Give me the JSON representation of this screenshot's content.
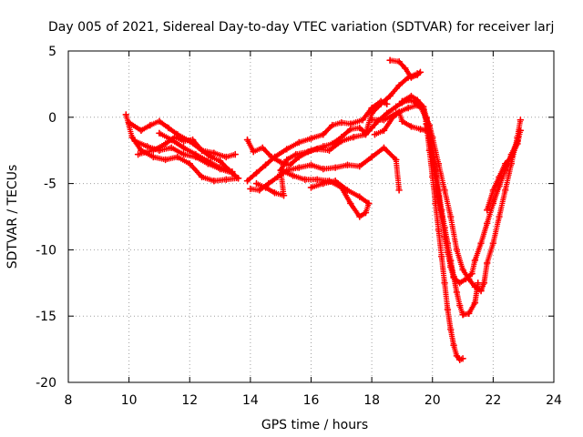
{
  "chart_data": {
    "type": "scatter",
    "title": "Day 005 of 2021, Sidereal Day-to-day VTEC variation (SDTVAR) for receiver larj",
    "xlabel": "GPS time / hours",
    "ylabel": "SDTVAR / TECUs",
    "xlim": [
      8,
      24
    ],
    "ylim": [
      -20,
      5
    ],
    "xticks": [
      8,
      10,
      12,
      14,
      16,
      18,
      20,
      22,
      24
    ],
    "yticks": [
      -20,
      -15,
      -10,
      -5,
      0,
      5
    ],
    "xtick_labels": [
      "8",
      "10",
      "12",
      "14",
      "16",
      "18",
      "20",
      "22",
      "24"
    ],
    "ytick_labels": [
      "-20",
      "-15",
      "-10",
      "-5",
      "0",
      "5"
    ],
    "grid": true,
    "marker": "plus",
    "color": "#ff0000",
    "series": [
      {
        "points": [
          [
            9.9,
            0.2
          ],
          [
            10.1,
            -1.5
          ],
          [
            10.4,
            -2.5
          ],
          [
            10.8,
            -3.0
          ],
          [
            11.2,
            -3.2
          ],
          [
            11.6,
            -3.0
          ],
          [
            12.0,
            -3.5
          ],
          [
            12.4,
            -4.5
          ],
          [
            12.8,
            -4.8
          ],
          [
            13.2,
            -4.7
          ],
          [
            13.6,
            -4.6
          ]
        ]
      },
      {
        "points": [
          [
            10.0,
            -0.4
          ],
          [
            10.4,
            -1.0
          ],
          [
            10.7,
            -0.6
          ],
          [
            11.0,
            -0.3
          ],
          [
            11.3,
            -0.8
          ],
          [
            11.6,
            -1.3
          ],
          [
            12.0,
            -1.8
          ],
          [
            12.4,
            -2.5
          ],
          [
            12.7,
            -3.0
          ],
          [
            13.0,
            -3.3
          ],
          [
            13.3,
            -4.0
          ],
          [
            13.6,
            -4.6
          ]
        ]
      },
      {
        "points": [
          [
            10.2,
            -1.8
          ],
          [
            10.6,
            -2.2
          ],
          [
            11.0,
            -2.5
          ],
          [
            11.4,
            -2.3
          ],
          [
            11.8,
            -2.8
          ],
          [
            12.2,
            -3.0
          ],
          [
            12.6,
            -3.5
          ],
          [
            13.0,
            -3.9
          ],
          [
            13.4,
            -4.2
          ]
        ]
      },
      {
        "points": [
          [
            10.3,
            -2.8
          ],
          [
            10.8,
            -2.5
          ],
          [
            11.2,
            -2.0
          ],
          [
            11.5,
            -1.5
          ],
          [
            11.8,
            -1.8
          ],
          [
            12.1,
            -1.7
          ],
          [
            12.4,
            -2.5
          ],
          [
            12.8,
            -2.7
          ],
          [
            13.2,
            -3.0
          ],
          [
            13.5,
            -2.8
          ]
        ]
      },
      {
        "points": [
          [
            11.0,
            -1.2
          ],
          [
            11.4,
            -1.7
          ],
          [
            11.8,
            -2.3
          ],
          [
            12.2,
            -2.8
          ],
          [
            12.6,
            -3.3
          ],
          [
            13.0,
            -3.8
          ],
          [
            13.4,
            -4.1
          ]
        ]
      },
      {
        "points": [
          [
            13.9,
            -1.7
          ],
          [
            14.1,
            -2.6
          ],
          [
            14.4,
            -2.3
          ],
          [
            14.7,
            -3.0
          ],
          [
            15.0,
            -3.4
          ],
          [
            15.3,
            -3.6
          ],
          [
            15.6,
            -3.0
          ],
          [
            16.0,
            -2.5
          ],
          [
            16.4,
            -2.2
          ],
          [
            16.7,
            -2.0
          ],
          [
            17.0,
            -1.5
          ],
          [
            17.3,
            -0.9
          ],
          [
            17.6,
            -0.8
          ],
          [
            17.8,
            -1.2
          ],
          [
            18.0,
            0.3
          ],
          [
            18.3,
            1.0
          ],
          [
            18.6,
            1.6
          ],
          [
            18.9,
            2.4
          ],
          [
            19.2,
            3.0
          ],
          [
            19.5,
            3.3
          ]
        ]
      },
      {
        "points": [
          [
            13.9,
            -4.8
          ],
          [
            14.2,
            -4.2
          ],
          [
            14.5,
            -3.6
          ],
          [
            14.8,
            -3.0
          ],
          [
            15.2,
            -2.4
          ],
          [
            15.6,
            -1.9
          ],
          [
            16.0,
            -1.6
          ],
          [
            16.4,
            -1.3
          ],
          [
            16.7,
            -0.6
          ],
          [
            17.0,
            -0.4
          ],
          [
            17.3,
            -0.5
          ],
          [
            17.7,
            -0.2
          ],
          [
            18.0,
            0.7
          ],
          [
            18.3,
            1.2
          ],
          [
            18.5,
            1.0
          ]
        ]
      },
      {
        "points": [
          [
            14.0,
            -5.4
          ],
          [
            14.3,
            -5.5
          ],
          [
            14.6,
            -5.0
          ],
          [
            14.9,
            -4.5
          ],
          [
            15.2,
            -4.0
          ],
          [
            15.6,
            -3.8
          ],
          [
            16.0,
            -3.6
          ],
          [
            16.4,
            -3.9
          ],
          [
            16.8,
            -3.8
          ],
          [
            17.2,
            -3.6
          ],
          [
            17.6,
            -3.7
          ],
          [
            18.0,
            -3.0
          ],
          [
            18.4,
            -2.3
          ],
          [
            18.8,
            -3.2
          ],
          [
            18.9,
            -5.5
          ]
        ]
      },
      {
        "points": [
          [
            14.2,
            -5.0
          ],
          [
            14.5,
            -5.3
          ],
          [
            14.8,
            -5.7
          ],
          [
            15.1,
            -5.9
          ],
          [
            15.0,
            -4.0
          ],
          [
            15.2,
            -3.2
          ],
          [
            15.5,
            -2.8
          ],
          [
            15.9,
            -2.6
          ],
          [
            16.2,
            -2.4
          ],
          [
            16.6,
            -2.5
          ],
          [
            17.0,
            -1.8
          ],
          [
            17.4,
            -1.5
          ],
          [
            17.8,
            -1.3
          ],
          [
            18.0,
            -0.8
          ],
          [
            18.2,
            -0.3
          ],
          [
            18.5,
            0.3
          ],
          [
            18.8,
            0.8
          ],
          [
            19.0,
            1.1
          ],
          [
            19.2,
            1.3
          ],
          [
            19.4,
            1.2
          ],
          [
            19.6,
            0.8
          ],
          [
            19.8,
            -0.1
          ],
          [
            19.9,
            -0.6
          ],
          [
            20.0,
            -1.5
          ],
          [
            20.2,
            -3.5
          ],
          [
            20.4,
            -5.5
          ],
          [
            20.6,
            -7.5
          ],
          [
            20.8,
            -10.0
          ],
          [
            21.0,
            -11.5
          ],
          [
            21.2,
            -12.2
          ],
          [
            21.4,
            -12.8
          ],
          [
            21.6,
            -13.1
          ],
          [
            21.7,
            -12.5
          ],
          [
            21.8,
            -11.0
          ],
          [
            22.0,
            -9.5
          ],
          [
            22.2,
            -7.5
          ],
          [
            22.4,
            -5.5
          ],
          [
            22.6,
            -3.5
          ],
          [
            22.8,
            -1.5
          ],
          [
            22.9,
            -0.2
          ]
        ]
      },
      {
        "points": [
          [
            15.0,
            -4.0
          ],
          [
            15.4,
            -4.4
          ],
          [
            15.8,
            -4.7
          ],
          [
            16.2,
            -4.7
          ],
          [
            16.6,
            -4.8
          ],
          [
            17.0,
            -5.3
          ],
          [
            17.3,
            -6.5
          ],
          [
            17.6,
            -7.5
          ],
          [
            17.8,
            -7.2
          ],
          [
            17.9,
            -6.5
          ]
        ]
      },
      {
        "points": [
          [
            16.0,
            -5.3
          ],
          [
            16.4,
            -5.0
          ],
          [
            16.8,
            -4.8
          ],
          [
            17.2,
            -5.5
          ],
          [
            17.6,
            -6.0
          ],
          [
            17.9,
            -6.5
          ]
        ]
      },
      {
        "points": [
          [
            18.6,
            4.3
          ],
          [
            18.9,
            4.2
          ],
          [
            19.1,
            3.7
          ],
          [
            19.3,
            3.0
          ],
          [
            19.5,
            3.2
          ],
          [
            19.6,
            3.4
          ]
        ]
      },
      {
        "points": [
          [
            18.0,
            -0.2
          ],
          [
            18.4,
            -0.2
          ],
          [
            18.8,
            0.3
          ],
          [
            19.2,
            0.7
          ],
          [
            19.5,
            0.9
          ],
          [
            19.7,
            0.6
          ],
          [
            19.8,
            -0.3
          ],
          [
            19.9,
            -1.6
          ],
          [
            20.0,
            -3.0
          ],
          [
            20.1,
            -4.5
          ],
          [
            20.2,
            -6.0
          ],
          [
            20.3,
            -7.5
          ],
          [
            20.4,
            -9.0
          ],
          [
            20.5,
            -10.2
          ],
          [
            20.6,
            -11.3
          ],
          [
            20.7,
            -12.1
          ],
          [
            20.9,
            -12.5
          ],
          [
            21.1,
            -12.2
          ],
          [
            21.3,
            -11.8
          ],
          [
            21.4,
            -10.8
          ],
          [
            21.6,
            -9.5
          ],
          [
            21.8,
            -8.0
          ],
          [
            22.0,
            -6.5
          ],
          [
            22.2,
            -5.2
          ],
          [
            22.4,
            -4.0
          ],
          [
            22.6,
            -2.8
          ],
          [
            22.8,
            -1.8
          ]
        ]
      },
      {
        "points": [
          [
            19.0,
            1.2
          ],
          [
            19.3,
            1.6
          ],
          [
            19.5,
            1.3
          ],
          [
            19.7,
            0.8
          ],
          [
            19.8,
            0.0
          ],
          [
            19.9,
            -1.0
          ],
          [
            20.0,
            -2.5
          ],
          [
            20.1,
            -4.0
          ],
          [
            20.2,
            -5.5
          ],
          [
            20.3,
            -7.0
          ],
          [
            20.4,
            -8.3
          ],
          [
            20.5,
            -9.5
          ],
          [
            20.6,
            -10.8
          ],
          [
            20.7,
            -12.0
          ],
          [
            20.8,
            -13.2
          ],
          [
            20.9,
            -14.2
          ],
          [
            21.0,
            -14.9
          ],
          [
            21.2,
            -14.8
          ],
          [
            21.4,
            -14.0
          ],
          [
            21.5,
            -12.5
          ]
        ]
      },
      {
        "points": [
          [
            19.8,
            -0.5
          ],
          [
            19.9,
            -2.5
          ],
          [
            20.0,
            -4.5
          ],
          [
            20.1,
            -6.5
          ],
          [
            20.2,
            -8.5
          ],
          [
            20.3,
            -10.5
          ],
          [
            20.4,
            -12.5
          ],
          [
            20.5,
            -14.5
          ],
          [
            20.6,
            -16.0
          ],
          [
            20.7,
            -17.2
          ],
          [
            20.8,
            -18.0
          ],
          [
            20.9,
            -18.3
          ],
          [
            21.0,
            -18.2
          ]
        ]
      },
      {
        "points": [
          [
            18.1,
            -1.3
          ],
          [
            18.4,
            -1.0
          ],
          [
            18.7,
            0.0
          ],
          [
            18.9,
            0.4
          ],
          [
            19.0,
            -0.3
          ],
          [
            19.3,
            -0.7
          ],
          [
            19.6,
            -0.9
          ],
          [
            19.8,
            -1.0
          ]
        ]
      },
      {
        "points": [
          [
            21.8,
            -7.0
          ],
          [
            22.0,
            -5.5
          ],
          [
            22.2,
            -4.5
          ],
          [
            22.4,
            -3.5
          ],
          [
            22.6,
            -3.0
          ],
          [
            22.8,
            -2.0
          ],
          [
            22.9,
            -1.0
          ]
        ]
      }
    ]
  }
}
